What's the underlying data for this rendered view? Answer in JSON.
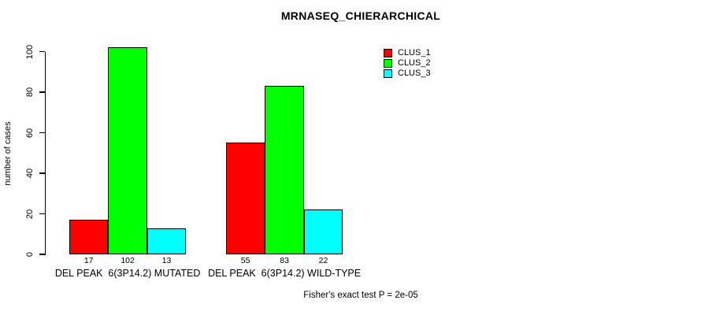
{
  "chart_data": {
    "type": "bar",
    "title": "MRNASEQ_CHIERARCHICAL",
    "xlabel": "",
    "ylabel": "number of cases",
    "ylim": [
      0,
      100
    ],
    "yticks": [
      0,
      20,
      40,
      60,
      80,
      100
    ],
    "grid": false,
    "categories": [
      "DEL PEAK  6(3P14.2) MUTATED",
      "DEL PEAK  6(3P14.2) WILD-TYPE"
    ],
    "series": [
      {
        "name": "CLUS_1",
        "color": "#ff0000",
        "values": [
          17,
          55
        ]
      },
      {
        "name": "CLUS_2",
        "color": "#00ff00",
        "values": [
          102,
          83
        ]
      },
      {
        "name": "CLUS_3",
        "color": "#00ffff",
        "values": [
          13,
          22
        ]
      }
    ],
    "bar_value_labels_shown": true,
    "legend_position": "top-right",
    "annotation": "Fisher's exact test P = 2e-05"
  }
}
